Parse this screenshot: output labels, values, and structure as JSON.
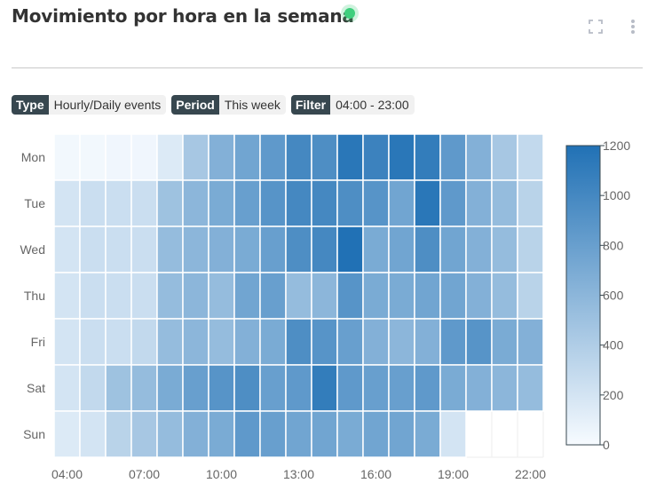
{
  "header": {
    "title": "Movimiento por hora en la semana",
    "status_color": "#3ecf7d"
  },
  "actions": {
    "expand_icon": "expand-icon",
    "more_icon": "more-vertical-icon"
  },
  "filters": [
    {
      "key": "Type",
      "value": "Hourly/Daily events"
    },
    {
      "key": "Period",
      "value": "This week"
    },
    {
      "key": "Filter",
      "value": "04:00 - 23:00"
    }
  ],
  "chart_data": {
    "type": "heatmap",
    "days": [
      "Mon",
      "Tue",
      "Wed",
      "Thu",
      "Fri",
      "Sat",
      "Sun"
    ],
    "hours": [
      "04:00",
      "05:00",
      "06:00",
      "07:00",
      "08:00",
      "09:00",
      "10:00",
      "11:00",
      "12:00",
      "13:00",
      "14:00",
      "15:00",
      "16:00",
      "17:00",
      "18:00",
      "19:00",
      "20:00",
      "21:00",
      "22:00"
    ],
    "x_tick_labels": [
      "04:00",
      "07:00",
      "10:00",
      "13:00",
      "16:00",
      "19:00",
      "22:00"
    ],
    "values": [
      [
        30,
        30,
        40,
        40,
        150,
        450,
        650,
        750,
        850,
        1000,
        950,
        1150,
        1050,
        1150,
        1100,
        850,
        650,
        450,
        300
      ],
      [
        200,
        250,
        250,
        250,
        500,
        600,
        700,
        800,
        900,
        1000,
        1000,
        950,
        900,
        750,
        1150,
        850,
        650,
        550,
        350
      ],
      [
        200,
        250,
        250,
        250,
        550,
        600,
        650,
        700,
        800,
        950,
        1000,
        1200,
        700,
        750,
        950,
        750,
        650,
        550,
        350
      ],
      [
        200,
        250,
        250,
        250,
        550,
        600,
        550,
        750,
        800,
        550,
        600,
        900,
        700,
        700,
        750,
        750,
        650,
        550,
        350
      ],
      [
        200,
        250,
        250,
        300,
        550,
        600,
        550,
        650,
        700,
        950,
        900,
        800,
        650,
        600,
        650,
        850,
        900,
        700,
        650
      ],
      [
        200,
        300,
        500,
        550,
        700,
        800,
        900,
        950,
        800,
        850,
        1100,
        850,
        800,
        800,
        850,
        700,
        650,
        600,
        550
      ],
      [
        150,
        200,
        350,
        450,
        550,
        650,
        700,
        850,
        800,
        750,
        750,
        700,
        750,
        750,
        700,
        200,
        null,
        null,
        null
      ]
    ],
    "colorbar": {
      "min": 0,
      "max": 1200,
      "ticks": [
        0,
        200,
        400,
        600,
        800,
        1000,
        1200
      ],
      "low_color": "#f7fbff",
      "high_color": "#2171b5"
    }
  }
}
